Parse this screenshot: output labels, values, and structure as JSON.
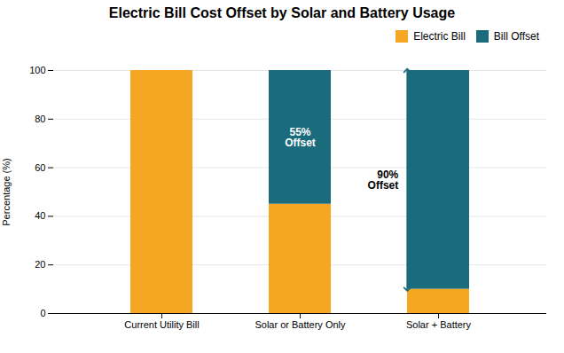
{
  "chart_data": {
    "type": "bar",
    "stacked": true,
    "title": "Electric Bill Cost Offset by Solar and Battery Usage",
    "ylabel": "Percentage (%)",
    "categories": [
      "Current Utility Bill",
      "Solar or Battery Only",
      "Solar + Battery"
    ],
    "series": [
      {
        "name": "Electric Bill",
        "color": "#F5A623",
        "values": [
          100,
          45,
          10
        ]
      },
      {
        "name": "Bill Offset",
        "color": "#1A6B7C",
        "values": [
          0,
          55,
          90
        ]
      }
    ],
    "ylim": [
      0,
      100
    ],
    "yticks": [
      0,
      20,
      40,
      60,
      80,
      100
    ],
    "grid": true,
    "legend": "upper right",
    "annotations": [
      {
        "text": "55%\nOffset",
        "category": "Solar or Battery Only",
        "series": "Bill Offset"
      },
      {
        "text": "90%\nOffset",
        "category": "Solar + Battery",
        "series": "Bill Offset",
        "arrow": true
      }
    ]
  }
}
